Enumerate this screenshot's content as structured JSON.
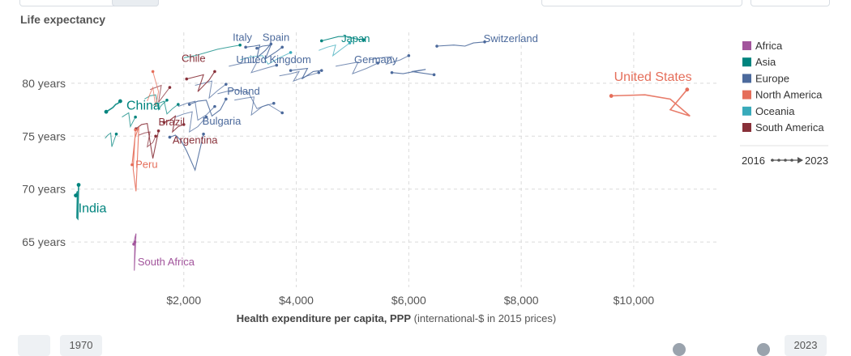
{
  "header": {
    "title": "Life expectancy"
  },
  "controls": {
    "start_year": "1970",
    "end_year": "2023"
  },
  "chart_data": {
    "type": "scatter",
    "title": "Life expectancy",
    "xlabel_bold": "Health expenditure per capita, PPP",
    "xlabel_rest": " (international-$ in 2015 prices)",
    "xlim": [
      0,
      11500
    ],
    "ylim": [
      61.5,
      84.8
    ],
    "x_ticks": [
      {
        "value": 2000,
        "label": "$2,000"
      },
      {
        "value": 4000,
        "label": "$4,000"
      },
      {
        "value": 6000,
        "label": "$6,000"
      },
      {
        "value": 8000,
        "label": "$8,000"
      },
      {
        "value": 10000,
        "label": "$10,000"
      }
    ],
    "y_ticks": [
      {
        "value": 65,
        "label": "65 years"
      },
      {
        "value": 70,
        "label": "70 years"
      },
      {
        "value": 75,
        "label": "75 years"
      },
      {
        "value": 80,
        "label": "80 years"
      }
    ],
    "grid": true,
    "legend_position": "right",
    "legend": [
      {
        "name": "Africa",
        "color": "#a2559c"
      },
      {
        "name": "Asia",
        "color": "#00847e"
      },
      {
        "name": "Europe",
        "color": "#4c6a9c"
      },
      {
        "name": "North America",
        "color": "#e56e5a"
      },
      {
        "name": "Oceania",
        "color": "#38aaba"
      },
      {
        "name": "South America",
        "color": "#883039"
      }
    ],
    "time_legend": {
      "start": "2016",
      "end": "2023"
    },
    "series": [
      {
        "name": "United States",
        "region": "North America",
        "highlight": true,
        "label_x": 9650,
        "label_y": 80.2,
        "points": [
          [
            9600,
            78.8
          ],
          [
            10200,
            78.9
          ],
          [
            10650,
            78.5
          ],
          [
            11000,
            76.9
          ],
          [
            10650,
            77.5
          ],
          [
            10950,
            79.4
          ]
        ]
      },
      {
        "name": "Switzerland",
        "region": "Europe",
        "label_x": 7330,
        "label_y": 83.9,
        "points": [
          [
            6500,
            83.5
          ],
          [
            6800,
            83.6
          ],
          [
            7000,
            83.5
          ],
          [
            7150,
            83.8
          ],
          [
            7350,
            83.9
          ]
        ]
      },
      {
        "name": "Japan",
        "region": "Asia",
        "label_x": 4800,
        "label_y": 83.9,
        "points": [
          [
            4450,
            84.0
          ],
          [
            4600,
            84.2
          ],
          [
            4750,
            84.4
          ],
          [
            4900,
            84.4
          ],
          [
            5050,
            84.2
          ],
          [
            5200,
            84.1
          ]
        ]
      },
      {
        "name": "Germany",
        "region": "Europe",
        "label_x": 5030,
        "label_y": 81.9,
        "points": [
          [
            5700,
            81.0
          ],
          [
            5900,
            80.9
          ],
          [
            6100,
            81.1
          ],
          [
            6300,
            81.3
          ],
          [
            6050,
            81.1
          ],
          [
            6450,
            80.8
          ]
        ]
      },
      {
        "name": "United Kingdom",
        "region": "Europe",
        "label_x": 2930,
        "label_y": 81.9,
        "points": [
          [
            3900,
            81.2
          ],
          [
            4050,
            81.3
          ],
          [
            4200,
            81.4
          ],
          [
            4100,
            80.4
          ],
          [
            4300,
            81.1
          ],
          [
            4450,
            81.2
          ]
        ]
      },
      {
        "name": "Italy",
        "region": "Europe",
        "label_x": 2870,
        "label_y": 84.0,
        "points": [
          [
            3300,
            83.3
          ],
          [
            3400,
            83.5
          ],
          [
            3550,
            83.6
          ],
          [
            3450,
            82.3
          ],
          [
            3650,
            83.0
          ],
          [
            3750,
            83.4
          ]
        ]
      },
      {
        "name": "Spain",
        "region": "Europe",
        "label_x": 3400,
        "label_y": 84.0,
        "points": [
          [
            3100,
            83.4
          ],
          [
            3250,
            83.5
          ],
          [
            3350,
            83.6
          ],
          [
            3300,
            82.4
          ],
          [
            3450,
            83.1
          ],
          [
            3550,
            83.7
          ]
        ]
      },
      {
        "name": "Chile",
        "region": "South America",
        "label_x": 1960,
        "label_y": 82.0,
        "points": [
          [
            2050,
            80.4
          ],
          [
            2200,
            80.6
          ],
          [
            2350,
            80.8
          ],
          [
            2250,
            79.2
          ],
          [
            2450,
            80.3
          ],
          [
            2550,
            81.1
          ]
        ]
      },
      {
        "name": "Poland",
        "region": "Europe",
        "label_x": 2770,
        "label_y": 78.9,
        "points": [
          [
            2100,
            78.0
          ],
          [
            2250,
            78.3
          ],
          [
            2400,
            78.4
          ],
          [
            2500,
            76.9
          ],
          [
            2650,
            77.5
          ],
          [
            2750,
            78.5
          ]
        ]
      },
      {
        "name": "China",
        "region": "Asia",
        "highlight": true,
        "label_x": 980,
        "label_y": 77.5,
        "points": [
          [
            620,
            77.3
          ],
          [
            680,
            77.5
          ],
          [
            740,
            77.7
          ],
          [
            790,
            78.0
          ],
          [
            830,
            78.1
          ],
          [
            870,
            78.3
          ]
        ]
      },
      {
        "name": "Brazil",
        "region": "South America",
        "label_x": 1550,
        "label_y": 76.0,
        "points": [
          [
            1150,
            75.7
          ],
          [
            1250,
            76.1
          ],
          [
            1350,
            76.2
          ],
          [
            1400,
            74.5
          ],
          [
            1450,
            72.9
          ],
          [
            1550,
            75.5
          ]
        ]
      },
      {
        "name": "Bulgaria",
        "region": "Europe",
        "label_x": 2330,
        "label_y": 76.1,
        "points": [
          [
            1750,
            74.9
          ],
          [
            1850,
            75.1
          ],
          [
            1950,
            74.6
          ],
          [
            2050,
            73.6
          ],
          [
            2200,
            71.8
          ],
          [
            2350,
            75.2
          ]
        ]
      },
      {
        "name": "Argentina",
        "region": "South America",
        "label_x": 1800,
        "label_y": 74.3,
        "points": [
          [
            1650,
            76.3
          ],
          [
            1750,
            76.5
          ],
          [
            1850,
            76.9
          ],
          [
            1800,
            75.4
          ],
          [
            1900,
            75.9
          ],
          [
            2000,
            76.1
          ]
        ]
      },
      {
        "name": "Peru",
        "region": "North America",
        "label_x": 1140,
        "label_y": 72.0,
        "points": [
          [
            1080,
            72.3
          ],
          [
            1130,
            74.8
          ],
          [
            1200,
            75.9
          ],
          [
            1150,
            69.8
          ],
          [
            1100,
            71.9
          ],
          [
            1140,
            75.6
          ]
        ]
      },
      {
        "name": "India",
        "region": "Asia",
        "highlight": true,
        "label_x": 125,
        "label_y": 67.8,
        "points": [
          [
            80,
            69.4
          ],
          [
            95,
            69.6
          ],
          [
            110,
            69.8
          ],
          [
            100,
            67.3
          ],
          [
            115,
            67.2
          ],
          [
            130,
            70.4
          ]
        ]
      },
      {
        "name": "South Africa",
        "region": "Africa",
        "label_x": 1180,
        "label_y": 62.8,
        "points": [
          [
            1110,
            64.8
          ],
          [
            1130,
            65.4
          ],
          [
            1150,
            65.8
          ],
          [
            1140,
            64.6
          ],
          [
            1120,
            62.3
          ],
          [
            1130,
            65.0
          ]
        ]
      }
    ],
    "background_series": [
      {
        "region": "Europe",
        "points": [
          [
            2600,
            79.0
          ],
          [
            2900,
            79.4
          ],
          [
            3150,
            79.1
          ],
          [
            3300,
            77.6
          ],
          [
            3500,
            78.0
          ],
          [
            3750,
            77.2
          ]
        ]
      },
      {
        "region": "Europe",
        "points": [
          [
            2800,
            81.6
          ],
          [
            3050,
            81.9
          ],
          [
            3300,
            82.0
          ],
          [
            3200,
            81.0
          ],
          [
            3450,
            81.4
          ],
          [
            3650,
            81.7
          ]
        ]
      },
      {
        "region": "Europe",
        "points": [
          [
            4700,
            81.6
          ],
          [
            4900,
            81.8
          ],
          [
            5100,
            82.0
          ],
          [
            5000,
            80.9
          ],
          [
            5250,
            81.4
          ],
          [
            5450,
            81.9
          ]
        ]
      },
      {
        "region": "Europe",
        "points": [
          [
            5300,
            82.2
          ],
          [
            5500,
            82.4
          ],
          [
            5700,
            82.5
          ],
          [
            5600,
            81.8
          ],
          [
            5850,
            82.2
          ],
          [
            6000,
            82.6
          ]
        ]
      },
      {
        "region": "Europe",
        "points": [
          [
            3700,
            80.7
          ],
          [
            3900,
            80.9
          ],
          [
            4050,
            81.1
          ],
          [
            3950,
            80.2
          ],
          [
            4200,
            80.7
          ],
          [
            4400,
            81.0
          ]
        ]
      },
      {
        "region": "Europe",
        "points": [
          [
            2200,
            79.8
          ],
          [
            2350,
            80.0
          ],
          [
            2500,
            80.2
          ],
          [
            2450,
            78.6
          ],
          [
            2600,
            79.3
          ],
          [
            2750,
            79.9
          ]
        ]
      },
      {
        "region": "Europe",
        "points": [
          [
            1900,
            77.8
          ],
          [
            2050,
            78.1
          ],
          [
            2200,
            78.3
          ],
          [
            2250,
            76.5
          ],
          [
            2400,
            77.0
          ],
          [
            2550,
            77.8
          ]
        ]
      },
      {
        "region": "Europe",
        "points": [
          [
            1850,
            76.8
          ],
          [
            2000,
            77.1
          ],
          [
            2150,
            77.3
          ],
          [
            2100,
            75.4
          ],
          [
            2250,
            75.9
          ],
          [
            2400,
            76.8
          ]
        ]
      },
      {
        "region": "Europe",
        "points": [
          [
            2900,
            78.4
          ],
          [
            3100,
            78.6
          ],
          [
            3250,
            78.7
          ],
          [
            3200,
            77.0
          ],
          [
            3400,
            77.8
          ],
          [
            3600,
            78.1
          ]
        ]
      },
      {
        "region": "Oceania",
        "points": [
          [
            3000,
            82.2
          ],
          [
            3200,
            82.5
          ],
          [
            3400,
            82.6
          ],
          [
            3500,
            81.8
          ],
          [
            3700,
            82.4
          ],
          [
            3900,
            82.9
          ]
        ]
      },
      {
        "region": "Oceania",
        "points": [
          [
            4400,
            83.1
          ],
          [
            4550,
            83.4
          ],
          [
            4700,
            83.6
          ],
          [
            4650,
            82.6
          ],
          [
            4800,
            83.2
          ],
          [
            4950,
            83.8
          ]
        ]
      },
      {
        "region": "Asia",
        "points": [
          [
            2000,
            82.4
          ],
          [
            2200,
            82.6
          ],
          [
            2400,
            82.9
          ],
          [
            2600,
            83.2
          ],
          [
            2800,
            83.4
          ],
          [
            3000,
            83.6
          ]
        ]
      },
      {
        "region": "Asia",
        "points": [
          [
            1300,
            78.5
          ],
          [
            1400,
            78.8
          ],
          [
            1500,
            78.9
          ],
          [
            1550,
            77.5
          ],
          [
            1600,
            77.9
          ],
          [
            1700,
            78.4
          ]
        ]
      },
      {
        "region": "Asia",
        "points": [
          [
            1450,
            77.9
          ],
          [
            1550,
            78.1
          ],
          [
            1650,
            78.3
          ],
          [
            1700,
            77.1
          ],
          [
            1800,
            77.6
          ],
          [
            1900,
            78.0
          ]
        ]
      },
      {
        "region": "South America",
        "points": [
          [
            1400,
            79.4
          ],
          [
            1500,
            79.6
          ],
          [
            1600,
            79.8
          ],
          [
            1550,
            78.2
          ],
          [
            1650,
            78.9
          ],
          [
            1750,
            79.6
          ]
        ]
      },
      {
        "region": "South America",
        "points": [
          [
            1200,
            75.1
          ],
          [
            1300,
            75.3
          ],
          [
            1400,
            75.4
          ],
          [
            1350,
            74.0
          ],
          [
            1450,
            74.4
          ],
          [
            1500,
            75.0
          ]
        ]
      },
      {
        "region": "North America",
        "points": [
          [
            1350,
            78.3
          ],
          [
            1400,
            79.0
          ],
          [
            1450,
            79.6
          ],
          [
            1500,
            77.8
          ],
          [
            1550,
            79.2
          ],
          [
            1450,
            81.1
          ]
        ]
      },
      {
        "region": "Asia",
        "points": [
          [
            600,
            74.8
          ],
          [
            650,
            75.1
          ],
          [
            700,
            75.3
          ],
          [
            720,
            74.0
          ],
          [
            760,
            74.6
          ],
          [
            800,
            75.2
          ]
        ]
      },
      {
        "region": "Asia",
        "points": [
          [
            900,
            76.8
          ],
          [
            960,
            77.0
          ],
          [
            1020,
            77.2
          ],
          [
            1050,
            75.9
          ],
          [
            1090,
            76.3
          ],
          [
            1140,
            76.8
          ]
        ]
      }
    ]
  }
}
